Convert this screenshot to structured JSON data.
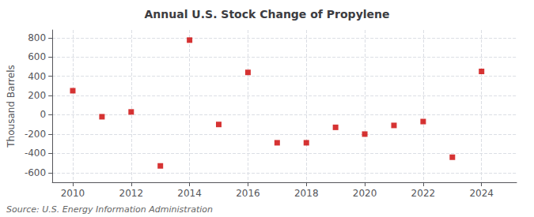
{
  "chart_data": {
    "type": "scatter",
    "title": "Annual U.S. Stock Change of Propylene",
    "ylabel": "Thousand Barrels",
    "source": "Source: U.S. Energy Information Administration",
    "x": [
      2010,
      2011,
      2012,
      2013,
      2014,
      2015,
      2016,
      2017,
      2018,
      2019,
      2020,
      2021,
      2022,
      2023,
      2024
    ],
    "values": [
      250,
      -20,
      30,
      -530,
      775,
      -100,
      440,
      -290,
      -290,
      -130,
      -200,
      -110,
      -70,
      -440,
      450
    ],
    "color": "#cc0000",
    "marker": "square",
    "xlim": [
      2009.3,
      2025.2
    ],
    "xticks": [
      2010,
      2012,
      2014,
      2016,
      2018,
      2020,
      2022,
      2024
    ],
    "ylim": [
      -700,
      880
    ],
    "yticks": [
      -600,
      -400,
      -200,
      0,
      200,
      400,
      600,
      800
    ],
    "grid": true
  }
}
